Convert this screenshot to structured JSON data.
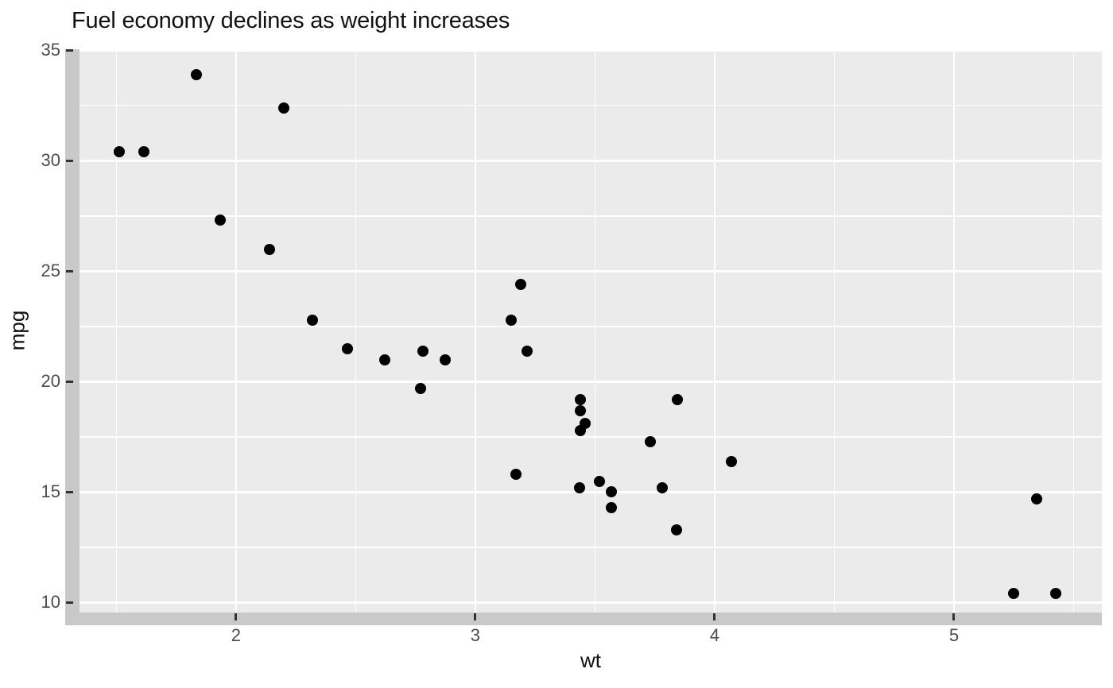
{
  "figure": {
    "background": "#FFFFFF",
    "panel_background": "#EBEBEB",
    "axis_band_color": "#C9C9C9",
    "grid_color": "#FFFFFF",
    "point_color": "#000000",
    "tick_mark_color": "#333333",
    "tick_label_color": "#4D4D4D",
    "title_color": "#111111"
  },
  "chart_data": {
    "type": "scatter",
    "title": "Fuel economy declines as weight increases",
    "xlabel": "wt",
    "ylabel": "mpg",
    "xlim": [
      1.346,
      5.618
    ],
    "ylim": [
      9.55,
      35.05
    ],
    "x_major_ticks": [
      2,
      3,
      4,
      5
    ],
    "x_minor_ticks": [
      1.5,
      2.5,
      3.5,
      4.5,
      5.5
    ],
    "y_major_ticks": [
      10,
      15,
      20,
      25,
      30,
      35
    ],
    "y_minor_ticks": [
      12.5,
      17.5,
      22.5,
      27.5,
      32.5
    ],
    "grid": true,
    "legend": "none",
    "points": [
      [
        2.62,
        21.0
      ],
      [
        2.875,
        21.0
      ],
      [
        2.32,
        22.8
      ],
      [
        3.215,
        21.4
      ],
      [
        3.44,
        18.7
      ],
      [
        3.46,
        18.1
      ],
      [
        3.57,
        14.3
      ],
      [
        3.19,
        24.4
      ],
      [
        3.15,
        22.8
      ],
      [
        3.44,
        19.2
      ],
      [
        3.44,
        17.8
      ],
      [
        4.07,
        16.4
      ],
      [
        3.73,
        17.3
      ],
      [
        3.78,
        15.2
      ],
      [
        5.25,
        10.4
      ],
      [
        5.424,
        10.4
      ],
      [
        5.345,
        14.7
      ],
      [
        2.2,
        32.4
      ],
      [
        1.615,
        30.4
      ],
      [
        1.835,
        33.9
      ],
      [
        2.465,
        21.5
      ],
      [
        3.52,
        15.5
      ],
      [
        3.435,
        15.2
      ],
      [
        3.84,
        13.3
      ],
      [
        3.845,
        19.2
      ],
      [
        1.935,
        27.3
      ],
      [
        2.14,
        26.0
      ],
      [
        1.513,
        30.4
      ],
      [
        3.17,
        15.8
      ],
      [
        2.77,
        19.7
      ],
      [
        3.57,
        15.0
      ],
      [
        2.78,
        21.4
      ]
    ]
  }
}
